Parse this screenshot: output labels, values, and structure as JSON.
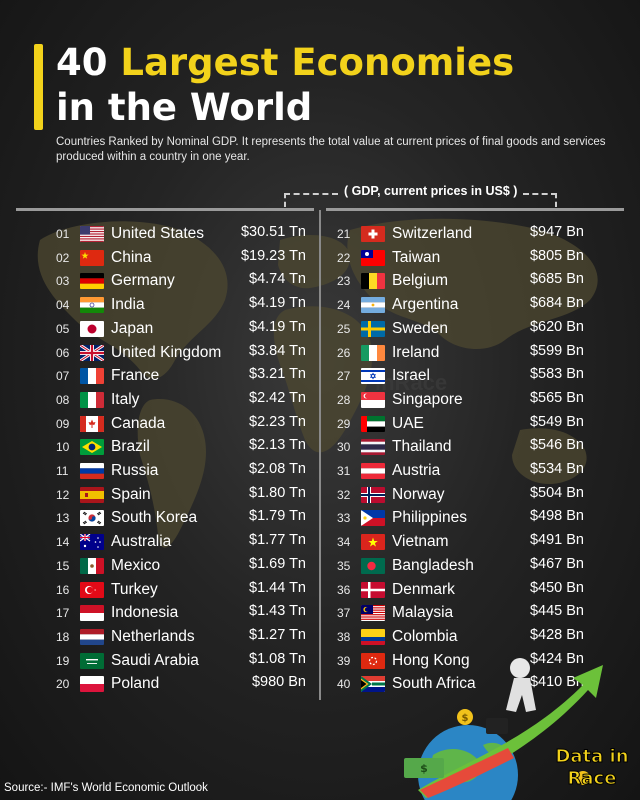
{
  "header": {
    "title_number": "40",
    "title_highlight": "Largest Economies",
    "title_line2": "in the World",
    "subtitle": "Countries Ranked by Nominal GDP. It represents the total value at current prices of final goods and services produced within a country in one year.",
    "unit_label": "( GDP, current prices in US$ )"
  },
  "source": "Source:- IMF's World Economic Outlook",
  "logo": {
    "line1": "Data in",
    "line2": "Race"
  },
  "colors": {
    "accent": "#f2d21b",
    "background": "#1c1c1c",
    "map": "#5a5433"
  },
  "chart_data": {
    "type": "table",
    "title": "40 Largest Economies in the World",
    "columns": [
      "rank",
      "country",
      "gdp"
    ],
    "rows": [
      {
        "rank": "01",
        "country": "United States",
        "value": "$30.51 Tn",
        "flag": "us"
      },
      {
        "rank": "02",
        "country": "China",
        "value": "$19.23 Tn",
        "flag": "cn"
      },
      {
        "rank": "03",
        "country": "Germany",
        "value": "$4.74 Tn",
        "flag": "de"
      },
      {
        "rank": "04",
        "country": "India",
        "value": "$4.19 Tn",
        "flag": "in"
      },
      {
        "rank": "05",
        "country": "Japan",
        "value": "$4.19 Tn",
        "flag": "jp"
      },
      {
        "rank": "06",
        "country": "United Kingdom",
        "value": "$3.84 Tn",
        "flag": "gb"
      },
      {
        "rank": "07",
        "country": "France",
        "value": "$3.21 Tn",
        "flag": "fr"
      },
      {
        "rank": "08",
        "country": "Italy",
        "value": "$2.42 Tn",
        "flag": "it"
      },
      {
        "rank": "09",
        "country": "Canada",
        "value": "$2.23 Tn",
        "flag": "ca"
      },
      {
        "rank": "10",
        "country": "Brazil",
        "value": "$2.13 Tn",
        "flag": "br"
      },
      {
        "rank": "11",
        "country": "Russia",
        "value": "$2.08 Tn",
        "flag": "ru"
      },
      {
        "rank": "12",
        "country": "Spain",
        "value": "$1.80 Tn",
        "flag": "es"
      },
      {
        "rank": "13",
        "country": "South Korea",
        "value": "$1.79 Tn",
        "flag": "kr"
      },
      {
        "rank": "14",
        "country": "Australia",
        "value": "$1.77 Tn",
        "flag": "au"
      },
      {
        "rank": "15",
        "country": "Mexico",
        "value": "$1.69 Tn",
        "flag": "mx"
      },
      {
        "rank": "16",
        "country": "Turkey",
        "value": "$1.44 Tn",
        "flag": "tr"
      },
      {
        "rank": "17",
        "country": "Indonesia",
        "value": "$1.43 Tn",
        "flag": "id"
      },
      {
        "rank": "18",
        "country": "Netherlands",
        "value": "$1.27 Tn",
        "flag": "nl"
      },
      {
        "rank": "19",
        "country": "Saudi Arabia",
        "value": "$1.08 Tn",
        "flag": "sa"
      },
      {
        "rank": "20",
        "country": "Poland",
        "value": "$980 Bn",
        "flag": "pl"
      },
      {
        "rank": "21",
        "country": "Switzerland",
        "value": "$947 Bn",
        "flag": "ch"
      },
      {
        "rank": "22",
        "country": "Taiwan",
        "value": "$805 Bn",
        "flag": "tw"
      },
      {
        "rank": "23",
        "country": "Belgium",
        "value": "$685 Bn",
        "flag": "be"
      },
      {
        "rank": "24",
        "country": "Argentina",
        "value": "$684 Bn",
        "flag": "ar"
      },
      {
        "rank": "25",
        "country": "Sweden",
        "value": "$620 Bn",
        "flag": "se"
      },
      {
        "rank": "26",
        "country": "Ireland",
        "value": "$599 Bn",
        "flag": "ie"
      },
      {
        "rank": "27",
        "country": "Israel",
        "value": "$583 Bn",
        "flag": "il"
      },
      {
        "rank": "28",
        "country": "Singapore",
        "value": "$565 Bn",
        "flag": "sg"
      },
      {
        "rank": "29",
        "country": "UAE",
        "value": "$549 Bn",
        "flag": "ae"
      },
      {
        "rank": "30",
        "country": "Thailand",
        "value": "$546 Bn",
        "flag": "th"
      },
      {
        "rank": "31",
        "country": "Austria",
        "value": "$534 Bn",
        "flag": "at"
      },
      {
        "rank": "32",
        "country": "Norway",
        "value": "$504 Bn",
        "flag": "no"
      },
      {
        "rank": "33",
        "country": "Philippines",
        "value": "$498 Bn",
        "flag": "ph"
      },
      {
        "rank": "34",
        "country": "Vietnam",
        "value": "$491 Bn",
        "flag": "vn"
      },
      {
        "rank": "35",
        "country": "Bangladesh",
        "value": "$467 Bn",
        "flag": "bd"
      },
      {
        "rank": "36",
        "country": "Denmark",
        "value": "$450 Bn",
        "flag": "dk"
      },
      {
        "rank": "37",
        "country": "Malaysia",
        "value": "$445 Bn",
        "flag": "my"
      },
      {
        "rank": "38",
        "country": "Colombia",
        "value": "$428 Bn",
        "flag": "co"
      },
      {
        "rank": "39",
        "country": "Hong Kong",
        "value": "$424 Bn",
        "flag": "hk"
      },
      {
        "rank": "40",
        "country": "South Africa",
        "value": "$410 Bn",
        "flag": "za"
      }
    ]
  }
}
